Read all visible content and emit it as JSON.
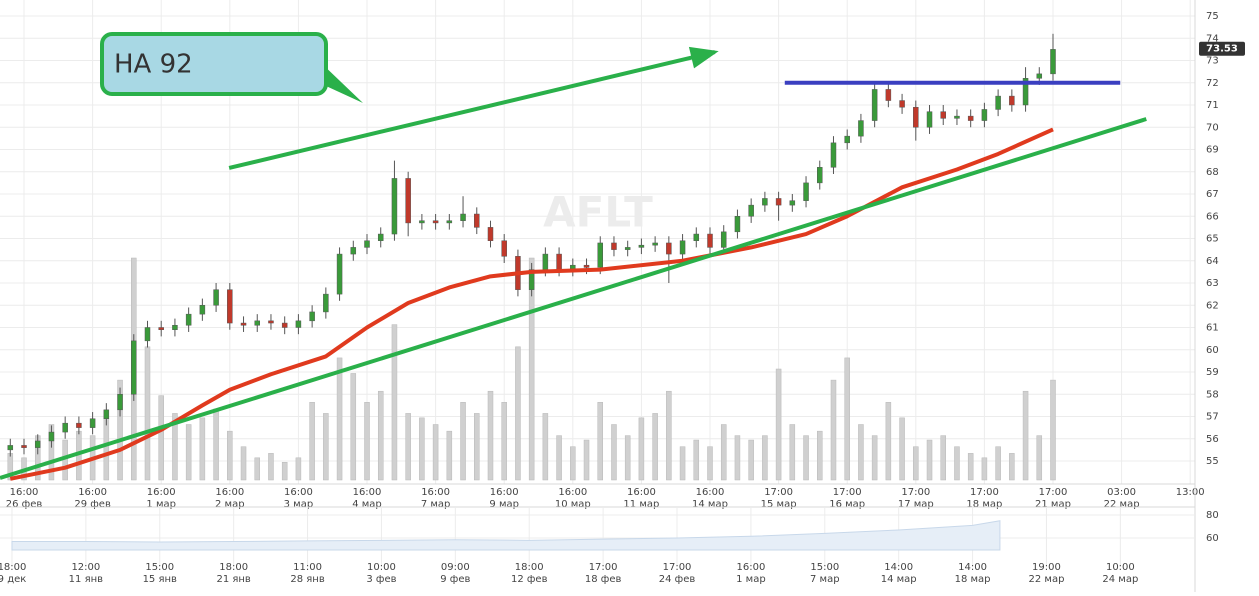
{
  "chart_data": {
    "type": "candlestick",
    "watermark": "AFLT",
    "last_price": 73.53,
    "xlim": [
      -0.35,
      17.07
    ],
    "ylim": [
      55,
      75
    ],
    "yticks": [
      55,
      56,
      57,
      58,
      59,
      60,
      61,
      62,
      63,
      64,
      65,
      66,
      67,
      68,
      69,
      70,
      71,
      72,
      73,
      74,
      75
    ],
    "xticks": [
      {
        "value": 0,
        "label": "16:00",
        "date": "26 фев"
      },
      {
        "value": 1,
        "label": "16:00",
        "date": "29 фев"
      },
      {
        "value": 2,
        "label": "16:00",
        "date": "1 мар"
      },
      {
        "value": 3,
        "label": "16:00",
        "date": "2 мар"
      },
      {
        "value": 4,
        "label": "16:00",
        "date": "3 мар"
      },
      {
        "value": 5,
        "label": "16:00",
        "date": "4 мар"
      },
      {
        "value": 6,
        "label": "16:00",
        "date": "7 мар"
      },
      {
        "value": 7,
        "label": "16:00",
        "date": "9 мар"
      },
      {
        "value": 8,
        "label": "16:00",
        "date": "10 мар"
      },
      {
        "value": 9,
        "label": "16:00",
        "date": "11 мар"
      },
      {
        "value": 10,
        "label": "16:00",
        "date": "14 мар"
      },
      {
        "value": 11,
        "label": "17:00",
        "date": "15 мар"
      },
      {
        "value": 12,
        "label": "17:00",
        "date": "16 мар"
      },
      {
        "value": 13,
        "label": "17:00",
        "date": "17 мар"
      },
      {
        "value": 14,
        "label": "17:00",
        "date": "18 мар"
      },
      {
        "value": 15,
        "label": "17:00",
        "date": "21 мар"
      },
      {
        "value": 16,
        "label": "03:00",
        "date": "22 мар"
      },
      {
        "value": 17,
        "label": "13:00"
      }
    ],
    "grid": true,
    "up_color": "#3a9a3a",
    "down_color": "#c0392b",
    "volume_color": "#d0d0d0",
    "volume_ylim": [
      0,
      100
    ],
    "x": [
      -0.2,
      0,
      0.2,
      0.4,
      0.6,
      0.8,
      1,
      1.2,
      1.4,
      1.6,
      1.8,
      2,
      2.2,
      2.4,
      2.6,
      2.8,
      3,
      3.2,
      3.4,
      3.6,
      3.8,
      4,
      4.2,
      4.4,
      4.6,
      4.8,
      5,
      5.2,
      5.4,
      5.6,
      5.8,
      6,
      6.2,
      6.4,
      6.6,
      6.8,
      7,
      7.2,
      7.4,
      7.6,
      7.8,
      8,
      8.2,
      8.4,
      8.6,
      8.8,
      9,
      9.2,
      9.4,
      9.6,
      9.8,
      10,
      10.2,
      10.4,
      10.6,
      10.8,
      11,
      11.2,
      11.4,
      11.6,
      11.8,
      12,
      12.2,
      12.4,
      12.6,
      12.8,
      13,
      13.2,
      13.4,
      13.6,
      13.8,
      14,
      14.2,
      14.4,
      14.6,
      14.8,
      15
    ],
    "open": [
      55.5,
      55.7,
      55.6,
      55.9,
      56.3,
      56.7,
      56.5,
      56.9,
      57.3,
      58.0,
      60.4,
      61.0,
      60.9,
      61.1,
      61.6,
      62.0,
      62.7,
      61.2,
      61.1,
      61.3,
      61.2,
      61.0,
      61.3,
      61.7,
      62.5,
      64.3,
      64.6,
      64.9,
      65.2,
      67.7,
      65.7,
      65.8,
      65.7,
      65.8,
      66.1,
      65.5,
      64.9,
      64.2,
      62.7,
      63.6,
      64.3,
      63.6,
      63.8,
      63.7,
      64.8,
      64.5,
      64.6,
      64.7,
      64.8,
      64.3,
      64.9,
      65.2,
      64.6,
      65.3,
      66.0,
      66.5,
      66.8,
      66.5,
      66.7,
      67.5,
      68.2,
      69.3,
      69.6,
      70.3,
      71.7,
      71.2,
      70.9,
      70.0,
      70.7,
      70.4,
      70.5,
      70.3,
      70.8,
      71.4,
      71.0,
      72.2,
      72.4
    ],
    "high": [
      56.0,
      56.0,
      56.2,
      56.6,
      57.0,
      57.0,
      57.2,
      57.6,
      58.3,
      60.7,
      61.3,
      61.3,
      61.4,
      61.9,
      62.3,
      63.0,
      63.0,
      61.5,
      61.6,
      61.6,
      61.5,
      61.6,
      62.0,
      62.8,
      64.6,
      64.9,
      65.2,
      65.5,
      68.5,
      68.0,
      66.1,
      66.1,
      66.1,
      66.9,
      66.4,
      65.8,
      65.2,
      64.5,
      63.9,
      64.6,
      64.6,
      64.1,
      64.1,
      65.1,
      65.1,
      64.9,
      65.0,
      65.1,
      65.1,
      65.2,
      65.5,
      65.5,
      65.6,
      66.3,
      66.8,
      67.1,
      67.1,
      67.0,
      67.8,
      68.5,
      69.6,
      69.9,
      70.6,
      72.0,
      72.0,
      71.5,
      71.2,
      71.0,
      71.0,
      70.8,
      70.8,
      71.1,
      71.7,
      71.7,
      72.7,
      72.7,
      74.2
    ],
    "low": [
      55.2,
      55.3,
      55.3,
      55.6,
      56.0,
      56.2,
      56.2,
      56.6,
      57.0,
      57.7,
      60.1,
      60.6,
      60.6,
      60.8,
      61.3,
      61.7,
      60.9,
      60.8,
      60.8,
      60.9,
      60.7,
      60.7,
      61.0,
      61.4,
      62.2,
      64.0,
      64.3,
      64.6,
      64.9,
      65.1,
      65.4,
      65.4,
      65.4,
      65.5,
      65.2,
      64.6,
      63.9,
      62.4,
      62.4,
      63.3,
      63.3,
      63.3,
      63.4,
      63.4,
      64.2,
      64.2,
      64.3,
      64.4,
      63.0,
      64.0,
      64.6,
      64.3,
      64.3,
      65.0,
      65.7,
      66.2,
      65.8,
      66.2,
      66.4,
      67.2,
      67.9,
      69.0,
      69.3,
      70.0,
      70.9,
      70.6,
      69.4,
      69.7,
      70.1,
      70.1,
      70.0,
      70.0,
      70.5,
      70.7,
      70.7,
      71.9,
      72.1
    ],
    "close": [
      55.7,
      55.6,
      55.9,
      56.3,
      56.7,
      56.5,
      56.9,
      57.3,
      58.0,
      60.4,
      61.0,
      60.9,
      61.1,
      61.6,
      62.0,
      62.7,
      61.2,
      61.1,
      61.3,
      61.2,
      61.0,
      61.3,
      61.7,
      62.5,
      64.3,
      64.6,
      64.9,
      65.2,
      67.7,
      65.7,
      65.8,
      65.7,
      65.8,
      66.1,
      65.5,
      64.9,
      64.2,
      62.7,
      63.6,
      64.3,
      63.6,
      63.8,
      63.7,
      64.8,
      64.5,
      64.6,
      64.7,
      64.8,
      64.3,
      64.9,
      65.2,
      64.6,
      65.3,
      66.0,
      66.5,
      66.8,
      66.5,
      66.7,
      67.5,
      68.2,
      69.3,
      69.6,
      70.3,
      71.7,
      71.2,
      70.9,
      70.0,
      70.7,
      70.4,
      70.5,
      70.3,
      70.8,
      71.4,
      71.0,
      72.2,
      72.4,
      73.5
    ],
    "volume": [
      12,
      10,
      20,
      25,
      18,
      22,
      20,
      28,
      45,
      100,
      60,
      38,
      30,
      25,
      28,
      32,
      22,
      15,
      10,
      12,
      8,
      10,
      35,
      30,
      55,
      48,
      35,
      40,
      70,
      30,
      28,
      25,
      22,
      35,
      30,
      40,
      35,
      60,
      100,
      30,
      20,
      15,
      18,
      35,
      25,
      20,
      28,
      30,
      40,
      15,
      18,
      15,
      25,
      20,
      18,
      20,
      50,
      25,
      20,
      22,
      45,
      55,
      25,
      20,
      35,
      28,
      15,
      18,
      20,
      15,
      12,
      10,
      15,
      12,
      40,
      20,
      45
    ],
    "moving_average": {
      "color": "#e03a1e",
      "x": [
        -0.2,
        0.6,
        1.4,
        2.0,
        2.6,
        3.0,
        3.6,
        4.4,
        5.0,
        5.6,
        6.2,
        6.8,
        7.4,
        8.4,
        9.6,
        10.6,
        11.4,
        12.0,
        12.8,
        13.6,
        14.2,
        15.0
      ],
      "values": [
        54.2,
        54.7,
        55.5,
        56.4,
        57.5,
        58.2,
        58.9,
        59.7,
        61.0,
        62.1,
        62.8,
        63.3,
        63.5,
        63.6,
        64.0,
        64.6,
        65.2,
        66.0,
        67.3,
        68.1,
        68.8,
        69.9
      ]
    },
    "annotations": {
      "callout": "НА 92",
      "lines": [
        {
          "color": "#2ab04a",
          "x": [
            -0.35,
            16.36
          ],
          "y": [
            54.24,
            70.37
          ]
        },
        {
          "color": "#2ab04a",
          "x": [
            2.99,
            10.07
          ],
          "y": [
            68.17,
            73.38
          ],
          "arrow": true
        },
        {
          "color": "#3a3fc0",
          "x": [
            11.09,
            15.98
          ],
          "y": [
            72,
            72
          ]
        }
      ]
    },
    "navigator": {
      "xlim": [
        -0.162,
        16.01
      ],
      "ylim": [
        49.6,
        88.7
      ],
      "yticks": [
        80,
        60
      ],
      "xticks": [
        {
          "value": 0,
          "label": "18:00",
          "date": "9 дек"
        },
        {
          "value": 1,
          "label": "12:00",
          "date": "11 янв"
        },
        {
          "value": 2,
          "label": "15:00",
          "date": "15 янв"
        },
        {
          "value": 3,
          "label": "18:00",
          "date": "21 янв"
        },
        {
          "value": 4,
          "label": "11:00",
          "date": "28 янв"
        },
        {
          "value": 5,
          "label": "10:00",
          "date": "3 фев"
        },
        {
          "value": 6,
          "label": "09:00",
          "date": "9 фев"
        },
        {
          "value": 7,
          "label": "18:00",
          "date": "12 фев"
        },
        {
          "value": 8,
          "label": "17:00",
          "date": "18 фев"
        },
        {
          "value": 9,
          "label": "17:00",
          "date": "24 фев"
        },
        {
          "value": 10,
          "label": "16:00",
          "date": "1 мар"
        },
        {
          "value": 11,
          "label": "15:00",
          "date": "7 мар"
        },
        {
          "value": 12,
          "label": "14:00",
          "date": "14 мар"
        },
        {
          "value": 13,
          "label": "14:00",
          "date": "18 мар"
        },
        {
          "value": 14,
          "label": "19:00",
          "date": "22 мар"
        },
        {
          "value": 15,
          "label": "10:00",
          "date": "24 мар"
        }
      ],
      "x": [
        0,
        1,
        2,
        3,
        4,
        5,
        6,
        7,
        8,
        9,
        10,
        11,
        12,
        13,
        13.37
      ],
      "values": [
        57,
        57,
        56.5,
        57,
        57.5,
        58,
        58.5,
        58,
        59,
        60,
        61.5,
        64,
        67,
        71,
        75
      ]
    }
  }
}
